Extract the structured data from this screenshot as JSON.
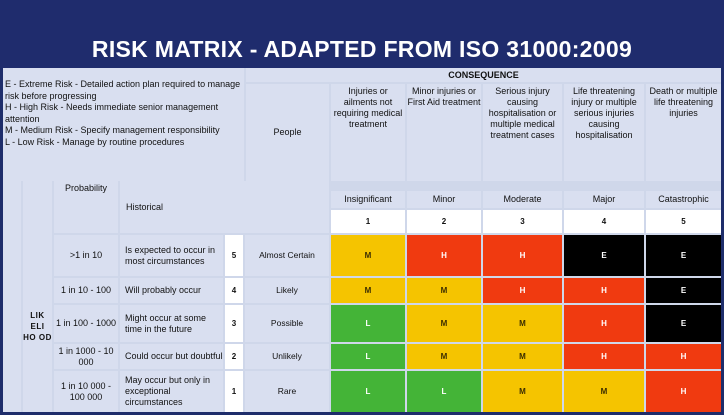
{
  "title": "RISK MATRIX - ADAPTED FROM ISO 31000:2009",
  "legend": [
    "E - Extreme Risk - Detailed action plan required to manage risk before progressing",
    "H - High Risk - Needs immediate senior management attention",
    "M - Medium Risk - Specify management responsibility",
    "L - Low Risk - Manage by routine procedures"
  ],
  "consequence_header": "CONSEQUENCE",
  "people_label": "People",
  "consequences": [
    {
      "description": "Injuries or ailments not requiring medical treatment",
      "level": "Insignificant",
      "score": "1"
    },
    {
      "description": "Minor injuries or First Aid treatment",
      "level": "Minor",
      "score": "2"
    },
    {
      "description": "Serious injury causing hospitalisation or multiple medical treatment cases",
      "level": "Moderate",
      "score": "3"
    },
    {
      "description": "Life threatening injury or multiple serious injuries causing hospitalisation",
      "level": "Major",
      "score": "4"
    },
    {
      "description": "Death or multiple life threatening injuries",
      "level": "Catastrophic",
      "score": "5"
    }
  ],
  "likelihood_label": "LIK ELI HO OD",
  "probability_label": "Probability",
  "historical_label": "Historical",
  "rows": [
    {
      "probability": ">1 in 10",
      "historical": "Is expected to occur in most circumstances",
      "score": "5",
      "name": "Almost Certain",
      "ratings": [
        "M",
        "H",
        "H",
        "E",
        "E"
      ]
    },
    {
      "probability": "1 in 10 - 100",
      "historical": "Will probably occur",
      "score": "4",
      "name": "Likely",
      "ratings": [
        "M",
        "M",
        "H",
        "H",
        "E"
      ]
    },
    {
      "probability": "1 in 100 - 1000",
      "historical": "Might occur at some time in the future",
      "score": "3",
      "name": "Possible",
      "ratings": [
        "L",
        "M",
        "M",
        "H",
        "E"
      ]
    },
    {
      "probability": "1 in 1000 - 10 000",
      "historical": "Could occur but doubtful",
      "score": "2",
      "name": "Unlikely",
      "ratings": [
        "L",
        "M",
        "M",
        "H",
        "H"
      ]
    },
    {
      "probability": "1 in 10 000 - 100 000",
      "historical": "May occur but only in exceptional circumstances",
      "score": "1",
      "name": "Rare",
      "ratings": [
        "L",
        "L",
        "M",
        "M",
        "H"
      ]
    }
  ],
  "colors": {
    "title_bar": "#1f2c6d",
    "extreme": "#000000",
    "high": "#f03a10",
    "medium": "#f5c400",
    "low": "#44b437"
  }
}
